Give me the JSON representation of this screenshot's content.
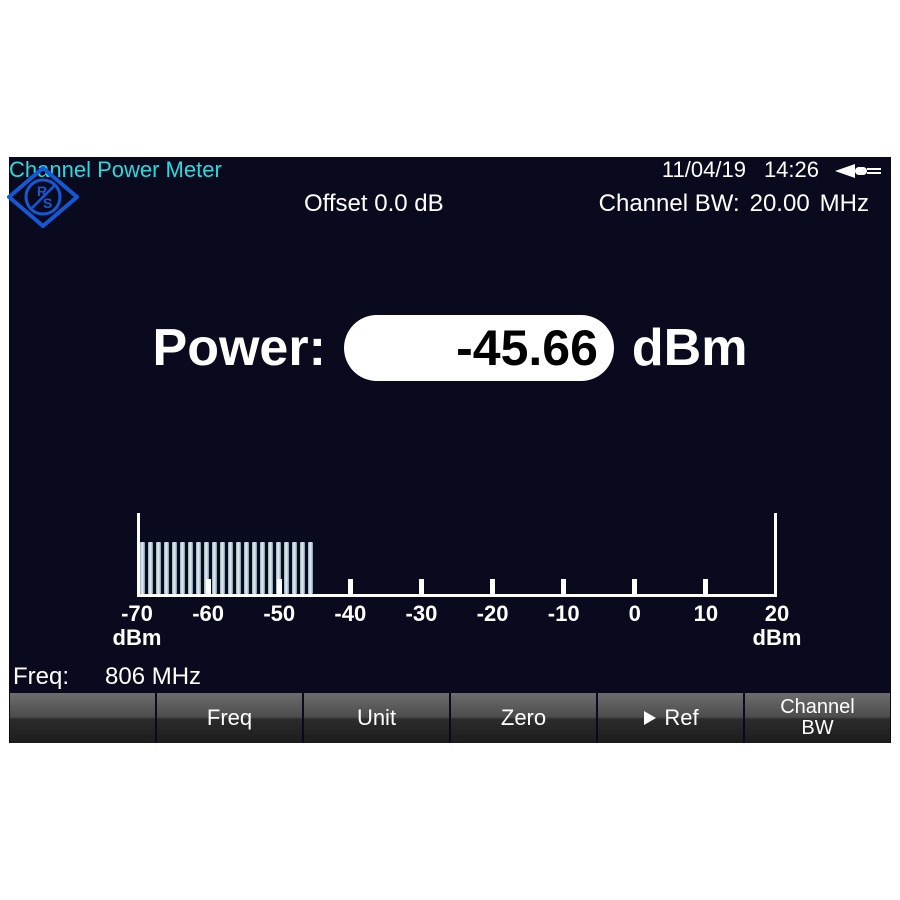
{
  "titlebar": {
    "title": "Channel Power Meter",
    "date": "11/04/19",
    "time": "14:26",
    "title_color": "#2bd8dd",
    "text_color": "#ffffff"
  },
  "info": {
    "offset_label": "Offset",
    "offset_value": "0.0 dB",
    "bw_label": "Channel BW:",
    "bw_value": "20.00",
    "bw_unit": "MHz"
  },
  "logo": {
    "diamond_color": "#1558d6",
    "letter1": "R",
    "letter2": "S"
  },
  "reading": {
    "label": "Power:",
    "value": "-45.66",
    "unit": "dBm",
    "pill_bg": "#ffffff",
    "pill_text": "#000000"
  },
  "scale": {
    "min": -70,
    "max": 20,
    "unit": "dBm",
    "tick_step": 10,
    "fill_to": -45.66,
    "segments": 22,
    "tick_labels": [
      "-70",
      "-60",
      "-50",
      "-40",
      "-30",
      "-20",
      "-10",
      "0",
      "10",
      "20"
    ],
    "colors": {
      "baseline": "#ffffff",
      "tick": "#ffffff",
      "label": "#ffffff"
    }
  },
  "footer": {
    "freq_label": "Freq:",
    "freq_value": "806 MHz"
  },
  "softkeys": [
    {
      "label": "",
      "name": "softkey-1"
    },
    {
      "label": "Freq",
      "name": "softkey-freq"
    },
    {
      "label": "Unit",
      "name": "softkey-unit"
    },
    {
      "label": "Zero",
      "name": "softkey-zero"
    },
    {
      "label": "Ref",
      "name": "softkey-ref",
      "prefix_play": true
    },
    {
      "label": "Channel\nBW",
      "name": "softkey-channel-bw"
    }
  ],
  "theme": {
    "screen_bg": "#0a0a1e",
    "text": "#ffffff"
  }
}
